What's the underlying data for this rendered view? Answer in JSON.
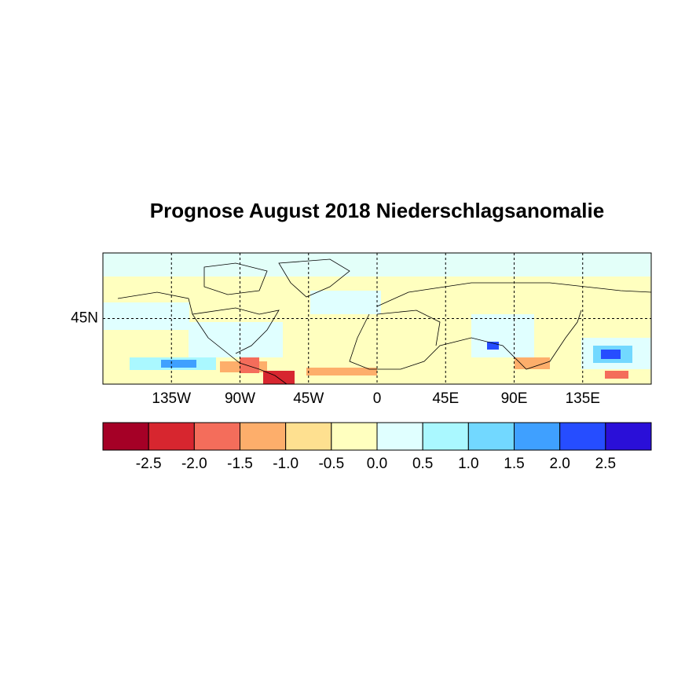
{
  "chart_data": {
    "type": "map",
    "title": "Prognose August 2018 Niederschlagsanomalie",
    "xlim": [
      -180,
      180
    ],
    "ylim": [
      0,
      90
    ],
    "xticks": [
      {
        "value": -135,
        "label": "135W"
      },
      {
        "value": -90,
        "label": "90W"
      },
      {
        "value": -45,
        "label": "45W"
      },
      0,
      {
        "value": 45,
        "label": "45E"
      },
      {
        "value": 90,
        "label": "90E"
      },
      {
        "value": 135,
        "label": "135E"
      }
    ],
    "yticks": [
      {
        "value": 45,
        "label": "45N"
      }
    ],
    "grid": true,
    "colorbar": {
      "clim": [
        -3,
        3
      ],
      "colors": [
        "#a50026",
        "#d7262f",
        "#f46d5b",
        "#fdae6b",
        "#fee090",
        "#ffffbf",
        "#e0ffff",
        "#aaf8ff",
        "#72d8ff",
        "#3fa0ff",
        "#264dff",
        "#2a0fd8"
      ],
      "ticks": [
        -2.5,
        {
          "value": -2,
          "label": "-2.0"
        },
        -1.5,
        {
          "value": -1,
          "label": "-1.0"
        },
        -0.5,
        {
          "value": 0,
          "label": "0.0"
        },
        0.5,
        {
          "value": 1,
          "label": "1.0"
        },
        1.5,
        {
          "value": 2,
          "label": "2.0"
        },
        2.5
      ]
    }
  }
}
